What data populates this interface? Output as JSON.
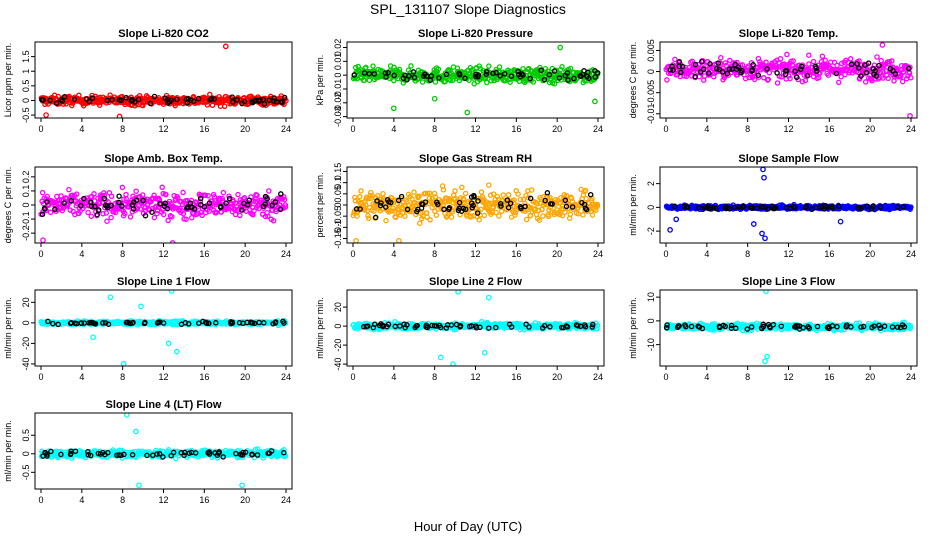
{
  "figure": {
    "title": "SPL_131107  Slope Diagnostics",
    "xlabel": "Hour of Day (UTC)"
  },
  "chart_data": [
    {
      "type": "scatter",
      "title": "Slope Li-820 CO2",
      "ylabel": "Licor ppm per min.",
      "color": "#ff0000",
      "xlim": [
        0,
        24
      ],
      "xticks": [
        0,
        4,
        8,
        12,
        16,
        20,
        24
      ],
      "ylim": [
        -0.6,
        2.0
      ],
      "yticks": [
        -0.5,
        0.0,
        0.5,
        1.0,
        1.5
      ],
      "center": 0.0,
      "spread": 0.35,
      "secondary_color": "#000000",
      "outliers": [
        {
          "x": 18.1,
          "y": 1.85
        },
        {
          "x": 7.7,
          "y": -0.55
        },
        {
          "x": 0.5,
          "y": -0.5
        }
      ]
    },
    {
      "type": "scatter",
      "title": "Slope Li-820 Pressure",
      "ylabel": "kPa per min.",
      "color": "#00cc00",
      "xlim": [
        0,
        24
      ],
      "xticks": [
        0,
        4,
        8,
        12,
        16,
        20,
        24
      ],
      "ylim": [
        -0.031,
        0.024
      ],
      "yticks": [
        -0.03,
        -0.02,
        -0.01,
        0.0,
        0.01,
        0.02
      ],
      "center": 0.0,
      "spread": 0.012,
      "secondary_color": "#000000",
      "outliers": [
        {
          "x": 20.3,
          "y": 0.02
        },
        {
          "x": 8.0,
          "y": -0.017
        },
        {
          "x": 11.2,
          "y": -0.027
        },
        {
          "x": 23.7,
          "y": -0.019
        },
        {
          "x": 4.0,
          "y": -0.024
        }
      ]
    },
    {
      "type": "scatter",
      "title": "Slope Li-820 Temp.",
      "ylabel": "degrees C per min.",
      "color": "#ff00ff",
      "xlim": [
        0,
        24
      ],
      "xticks": [
        0,
        4,
        8,
        12,
        16,
        20,
        24
      ],
      "ylim": [
        -0.011,
        0.007
      ],
      "yticks": [
        -0.01,
        -0.005,
        0.0,
        0.005
      ],
      "center": 0.0005,
      "spread": 0.0055,
      "secondary_color": "#000000",
      "outliers": [
        {
          "x": 23.9,
          "y": -0.0105
        },
        {
          "x": 21.2,
          "y": 0.0063
        }
      ]
    },
    {
      "type": "scatter",
      "title": "Slope Amb. Box Temp.",
      "ylabel": "degrees C per min.",
      "color": "#ff00ff",
      "xlim": [
        0,
        24
      ],
      "xticks": [
        0,
        4,
        8,
        12,
        16,
        20,
        24
      ],
      "ylim": [
        -0.27,
        0.27
      ],
      "yticks": [
        -0.2,
        -0.1,
        0.0,
        0.1,
        0.2
      ],
      "center": 0.0,
      "spread": 0.2,
      "secondary_color": "#000000",
      "outliers": [
        {
          "x": 12.9,
          "y": -0.27
        },
        {
          "x": 0.2,
          "y": -0.25
        }
      ]
    },
    {
      "type": "scatter",
      "title": "Slope Gas Stream RH",
      "ylabel": "percent per min.",
      "color": "#ffa500",
      "xlim": [
        0,
        24
      ],
      "xticks": [
        0,
        4,
        8,
        12,
        16,
        20,
        24
      ],
      "ylim": [
        -0.17,
        0.17
      ],
      "yticks": [
        -0.15,
        -0.1,
        -0.05,
        0.0,
        0.05,
        0.1,
        0.15
      ],
      "center": 0.0,
      "spread": 0.14,
      "secondary_color": "#000000",
      "outliers": [
        {
          "x": 0.3,
          "y": -0.16
        },
        {
          "x": 4.5,
          "y": -0.16
        }
      ]
    },
    {
      "type": "scatter",
      "title": "Slope Sample Flow",
      "ylabel": "ml/min per min.",
      "color": "#0000ff",
      "xlim": [
        0,
        24
      ],
      "xticks": [
        0,
        4,
        8,
        12,
        16,
        20,
        24
      ],
      "ylim": [
        -3.0,
        3.4
      ],
      "yticks": [
        -2,
        0,
        2
      ],
      "center": 0.0,
      "spread": 0.35,
      "secondary_color": "#000000",
      "outliers": [
        {
          "x": 9.5,
          "y": 3.2
        },
        {
          "x": 9.6,
          "y": 2.5
        },
        {
          "x": 9.7,
          "y": -2.6
        },
        {
          "x": 9.4,
          "y": -2.2
        },
        {
          "x": 8.6,
          "y": -1.4
        },
        {
          "x": 0.4,
          "y": -1.9
        },
        {
          "x": 17.1,
          "y": -1.2
        },
        {
          "x": 1.0,
          "y": -1.0
        }
      ]
    },
    {
      "type": "scatter",
      "title": "Slope Line 1 Flow",
      "ylabel": "ml/min per min.",
      "color": "#00ffff",
      "xlim": [
        0,
        24
      ],
      "xticks": [
        0,
        4,
        8,
        12,
        16,
        20,
        24
      ],
      "ylim": [
        -42,
        32
      ],
      "yticks": [
        -40,
        -20,
        0,
        20
      ],
      "center": 0.0,
      "spread": 4.0,
      "secondary_color": "#000000",
      "outliers": [
        {
          "x": 12.8,
          "y": 31
        },
        {
          "x": 6.8,
          "y": 25
        },
        {
          "x": 8.1,
          "y": -40
        },
        {
          "x": 13.3,
          "y": -28
        },
        {
          "x": 5.1,
          "y": -14
        },
        {
          "x": 12.5,
          "y": -20
        },
        {
          "x": 9.8,
          "y": 16
        }
      ]
    },
    {
      "type": "scatter",
      "title": "Slope Line 2 Flow",
      "ylabel": "ml/min per min.",
      "color": "#00ffff",
      "xlim": [
        0,
        24
      ],
      "xticks": [
        0,
        4,
        8,
        12,
        16,
        20,
        24
      ],
      "ylim": [
        -42,
        38
      ],
      "yticks": [
        -40,
        -20,
        0,
        20
      ],
      "center": 0.0,
      "spread": 7.0,
      "secondary_color": "#000000",
      "outliers": [
        {
          "x": 10.3,
          "y": 36
        },
        {
          "x": 9.8,
          "y": -40
        },
        {
          "x": 8.6,
          "y": -33
        },
        {
          "x": 12.9,
          "y": -28
        },
        {
          "x": 13.3,
          "y": 30
        }
      ]
    },
    {
      "type": "scatter",
      "title": "Slope Line 3 Flow",
      "ylabel": "ml/min per min.",
      "color": "#00ffff",
      "xlim": [
        0,
        24
      ],
      "xticks": [
        0,
        4,
        8,
        12,
        16,
        20,
        24
      ],
      "ylim": [
        -19,
        13
      ],
      "yticks": [
        -10,
        0,
        10
      ],
      "center": -2.5,
      "spread": 3.0,
      "secondary_color": "#000000",
      "outliers": [
        {
          "x": 9.8,
          "y": 12.5
        },
        {
          "x": 9.7,
          "y": -17
        },
        {
          "x": 9.9,
          "y": -15
        }
      ]
    },
    {
      "type": "scatter",
      "title": "Slope Line 4 (LT) Flow",
      "ylabel": "ml/min per min.",
      "color": "#00ffff",
      "xlim": [
        0,
        24
      ],
      "xticks": [
        0,
        4,
        8,
        12,
        16,
        20,
        24
      ],
      "ylim": [
        -0.95,
        1.1
      ],
      "yticks": [
        -0.5,
        0.0,
        0.5
      ],
      "center": 0.0,
      "spread": 0.22,
      "secondary_color": "#000000",
      "outliers": [
        {
          "x": 8.4,
          "y": 1.05
        },
        {
          "x": 9.6,
          "y": -0.85
        },
        {
          "x": 19.7,
          "y": -0.85
        },
        {
          "x": 9.3,
          "y": 0.6
        }
      ]
    }
  ]
}
